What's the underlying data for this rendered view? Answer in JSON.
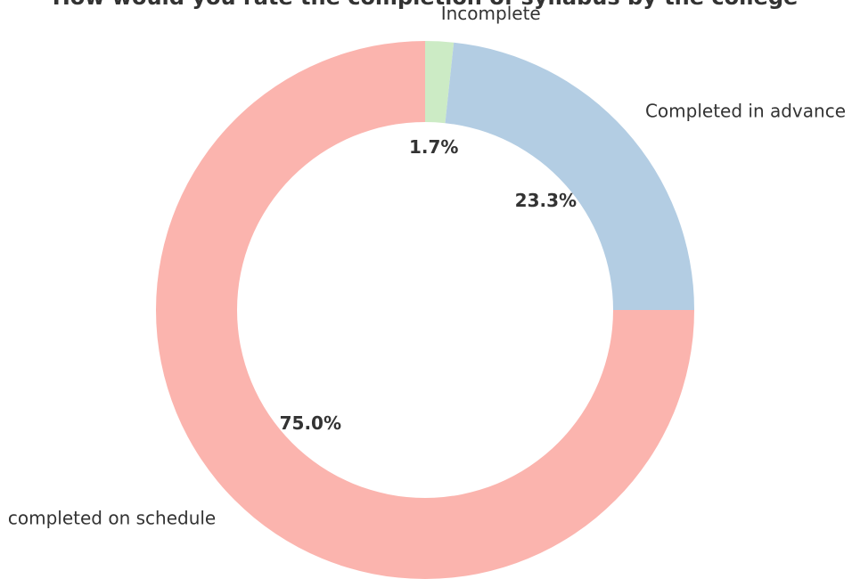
{
  "chart_data": {
    "type": "donut",
    "title": "How would you rate the completion of syllabus by the college",
    "categories": [
      "Incomplete",
      "Completed in advance",
      "completed on schedule"
    ],
    "values": [
      1.7,
      23.3,
      75.0
    ],
    "value_labels": [
      "1.7%",
      "23.3%",
      "75.0%"
    ],
    "colors": [
      "#ccebc5",
      "#b3cde3",
      "#fbb4ae"
    ]
  }
}
